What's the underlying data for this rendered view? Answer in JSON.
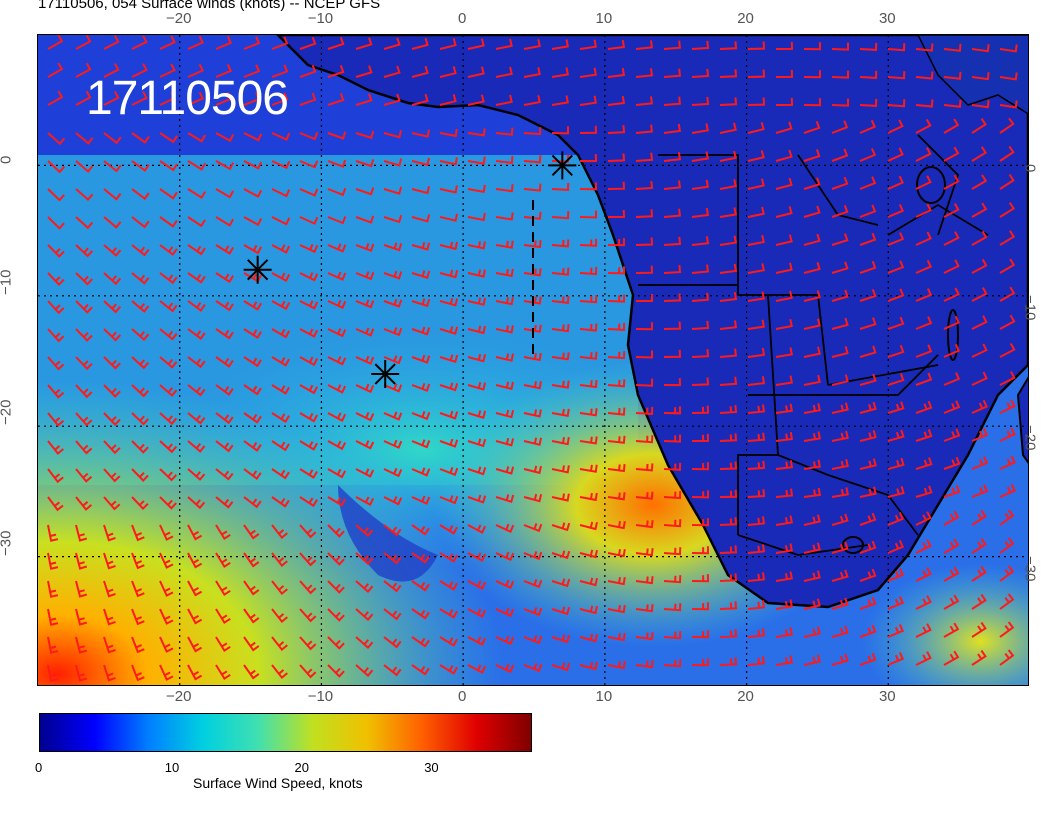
{
  "header": {
    "title": "17110506, 054 Surface winds (knots) -- NCEP GFS"
  },
  "map": {
    "date_stamp": "17110506",
    "lon_labels": [
      "−20",
      "−10",
      "0",
      "10",
      "20",
      "30"
    ],
    "lat_labels": [
      "0",
      "−10",
      "−20",
      "−30"
    ],
    "lon_range": [
      -30,
      40
    ],
    "lat_range": [
      -40,
      10
    ],
    "station_markers": [
      {
        "lon": 7,
        "lat": 0
      },
      {
        "lon": -14.5,
        "lat": -8
      },
      {
        "lon": -5.5,
        "lat": -16
      }
    ],
    "colors": {
      "ocean_blue": "#1f3fd0",
      "land_blue": "#1226a8",
      "barb": "#ff1a1a",
      "coast": "#000000"
    }
  },
  "colorbar": {
    "ticks": [
      "0",
      "10",
      "20",
      "30"
    ],
    "label": "Surface Wind Speed, knots",
    "range": [
      0,
      38
    ],
    "colors": [
      "#00008f",
      "#0000ff",
      "#0080ff",
      "#00d0e0",
      "#40e0b0",
      "#c0e020",
      "#f0c000",
      "#ff6000",
      "#e00000",
      "#800000"
    ]
  }
}
